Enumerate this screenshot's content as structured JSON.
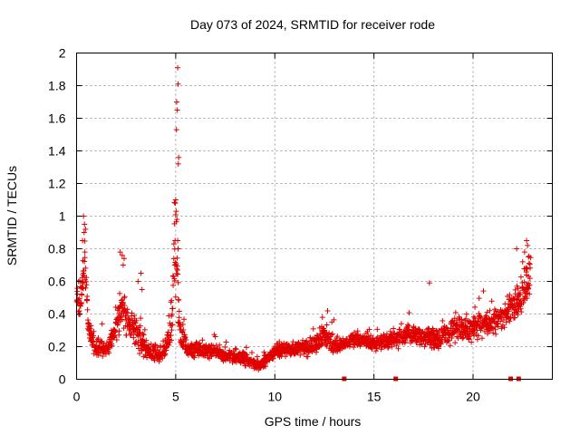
{
  "chart_data": {
    "type": "scatter",
    "title": "Day 073 of 2024, SRMTID for receiver rode",
    "xlabel": "GPS time / hours",
    "ylabel": "SRMTID / TECUs",
    "xlim": [
      0,
      24
    ],
    "ylim": [
      0,
      2
    ],
    "xticks": [
      0,
      5,
      10,
      15,
      20
    ],
    "yticks": [
      0,
      0.2,
      0.4,
      0.6,
      0.8,
      1,
      1.2,
      1.4,
      1.6,
      1.8,
      2
    ],
    "ytick_labels": [
      "0",
      "0.2",
      "0.4",
      "0.6",
      "0.8",
      "1",
      "1.2",
      "1.4",
      "1.6",
      "1.8",
      "2"
    ],
    "xtick_labels": [
      "0",
      "5",
      "10",
      "15",
      "20"
    ],
    "grid": true,
    "marker": "plus",
    "color": "#e00000",
    "series_profile": [
      {
        "x": 0.0,
        "y": 0.5,
        "spread": 0.12
      },
      {
        "x": 0.2,
        "y": 0.45,
        "spread": 0.1
      },
      {
        "x": 0.4,
        "y": 0.75,
        "spread": 0.25
      },
      {
        "x": 0.6,
        "y": 0.3,
        "spread": 0.1
      },
      {
        "x": 1.0,
        "y": 0.2,
        "spread": 0.08
      },
      {
        "x": 1.5,
        "y": 0.17,
        "spread": 0.07
      },
      {
        "x": 2.0,
        "y": 0.32,
        "spread": 0.12
      },
      {
        "x": 2.3,
        "y": 0.45,
        "spread": 0.2
      },
      {
        "x": 2.6,
        "y": 0.35,
        "spread": 0.15
      },
      {
        "x": 3.0,
        "y": 0.3,
        "spread": 0.15
      },
      {
        "x": 3.5,
        "y": 0.18,
        "spread": 0.08
      },
      {
        "x": 4.0,
        "y": 0.15,
        "spread": 0.07
      },
      {
        "x": 4.5,
        "y": 0.18,
        "spread": 0.08
      },
      {
        "x": 4.8,
        "y": 0.35,
        "spread": 0.2
      },
      {
        "x": 5.0,
        "y": 0.9,
        "spread": 0.5
      },
      {
        "x": 5.2,
        "y": 0.3,
        "spread": 0.15
      },
      {
        "x": 5.6,
        "y": 0.18,
        "spread": 0.07
      },
      {
        "x": 6.5,
        "y": 0.18,
        "spread": 0.07
      },
      {
        "x": 7.5,
        "y": 0.15,
        "spread": 0.06
      },
      {
        "x": 8.5,
        "y": 0.13,
        "spread": 0.06
      },
      {
        "x": 9.2,
        "y": 0.08,
        "spread": 0.04
      },
      {
        "x": 10.0,
        "y": 0.18,
        "spread": 0.07
      },
      {
        "x": 11.0,
        "y": 0.18,
        "spread": 0.07
      },
      {
        "x": 12.0,
        "y": 0.2,
        "spread": 0.08
      },
      {
        "x": 12.5,
        "y": 0.28,
        "spread": 0.1
      },
      {
        "x": 13.0,
        "y": 0.2,
        "spread": 0.08
      },
      {
        "x": 14.0,
        "y": 0.24,
        "spread": 0.06
      },
      {
        "x": 15.0,
        "y": 0.22,
        "spread": 0.06
      },
      {
        "x": 16.0,
        "y": 0.25,
        "spread": 0.08
      },
      {
        "x": 17.0,
        "y": 0.28,
        "spread": 0.08
      },
      {
        "x": 18.0,
        "y": 0.25,
        "spread": 0.1
      },
      {
        "x": 19.0,
        "y": 0.3,
        "spread": 0.1
      },
      {
        "x": 20.0,
        "y": 0.32,
        "spread": 0.1
      },
      {
        "x": 21.0,
        "y": 0.35,
        "spread": 0.1
      },
      {
        "x": 21.5,
        "y": 0.38,
        "spread": 0.1
      },
      {
        "x": 22.0,
        "y": 0.45,
        "spread": 0.12
      },
      {
        "x": 22.5,
        "y": 0.5,
        "spread": 0.15
      },
      {
        "x": 22.8,
        "y": 0.6,
        "spread": 0.22
      }
    ],
    "spikes": [
      {
        "x": 0.35,
        "y": 1.0
      },
      {
        "x": 0.4,
        "y": 0.95
      },
      {
        "x": 0.45,
        "y": 0.92
      },
      {
        "x": 0.38,
        "y": 0.9
      },
      {
        "x": 0.3,
        "y": 0.85
      },
      {
        "x": 0.42,
        "y": 0.78
      },
      {
        "x": 0.35,
        "y": 0.65
      },
      {
        "x": 2.2,
        "y": 0.78
      },
      {
        "x": 2.3,
        "y": 0.76
      },
      {
        "x": 2.4,
        "y": 0.74
      },
      {
        "x": 2.35,
        "y": 0.7
      },
      {
        "x": 3.25,
        "y": 0.65
      },
      {
        "x": 3.3,
        "y": 0.55
      },
      {
        "x": 3.1,
        "y": 0.6
      },
      {
        "x": 5.1,
        "y": 1.91
      },
      {
        "x": 5.12,
        "y": 1.81
      },
      {
        "x": 5.05,
        "y": 1.7
      },
      {
        "x": 5.08,
        "y": 1.65
      },
      {
        "x": 5.04,
        "y": 1.53
      },
      {
        "x": 5.15,
        "y": 1.36
      },
      {
        "x": 5.13,
        "y": 1.32
      },
      {
        "x": 5.0,
        "y": 1.1
      },
      {
        "x": 4.98,
        "y": 1.08
      },
      {
        "x": 5.02,
        "y": 1.03
      },
      {
        "x": 5.06,
        "y": 0.98
      },
      {
        "x": 5.1,
        "y": 0.85
      },
      {
        "x": 5.12,
        "y": 0.8
      },
      {
        "x": 4.95,
        "y": 0.7
      },
      {
        "x": 12.4,
        "y": 0.38
      },
      {
        "x": 17.8,
        "y": 0.59
      },
      {
        "x": 22.2,
        "y": 0.8
      },
      {
        "x": 22.7,
        "y": 0.85
      },
      {
        "x": 22.75,
        "y": 0.82
      },
      {
        "x": 22.6,
        "y": 0.78
      },
      {
        "x": 22.8,
        "y": 0.75
      },
      {
        "x": 22.5,
        "y": 0.72
      },
      {
        "x": 22.65,
        "y": 0.68
      }
    ],
    "x_end": 22.9,
    "gap_markers_x": [
      13.5,
      16.1,
      21.9,
      22.3
    ]
  }
}
